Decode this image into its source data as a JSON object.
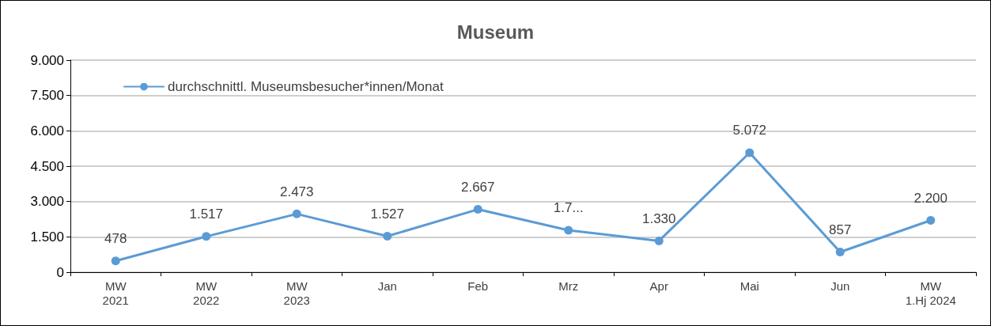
{
  "chart_data": {
    "type": "line",
    "title": "Museum",
    "categories": [
      "MW\n2021",
      "MW\n2022",
      "MW\n2023",
      "Jan",
      "Feb",
      "Mrz",
      "Apr",
      "Mai",
      "Jun",
      "MW\n1.Hj 2024"
    ],
    "series": [
      {
        "name": "durchschnittl. Museumsbesucher*innen/Monat",
        "color": "#5b9bd5",
        "values": [
          478,
          1517,
          2473,
          1527,
          2667,
          1780,
          1330,
          5072,
          857,
          2200
        ],
        "value_labels": [
          "478",
          "1.517",
          "2.473",
          "1.527",
          "2.667",
          "1.7...",
          "1.330",
          "5.072",
          "857",
          "2.200"
        ]
      }
    ],
    "ylim": [
      0,
      9000
    ],
    "yticks": [
      {
        "value": 0,
        "label": "0"
      },
      {
        "value": 1500,
        "label": "1.500"
      },
      {
        "value": 3000,
        "label": "3.000"
      },
      {
        "value": 4500,
        "label": "4.500"
      },
      {
        "value": 6000,
        "label": "6.000"
      },
      {
        "value": 7500,
        "label": "7.500"
      },
      {
        "value": 9000,
        "label": "9.000"
      }
    ],
    "grid": "y",
    "legend": "top left",
    "marker": "circle",
    "line_style": "solid"
  }
}
